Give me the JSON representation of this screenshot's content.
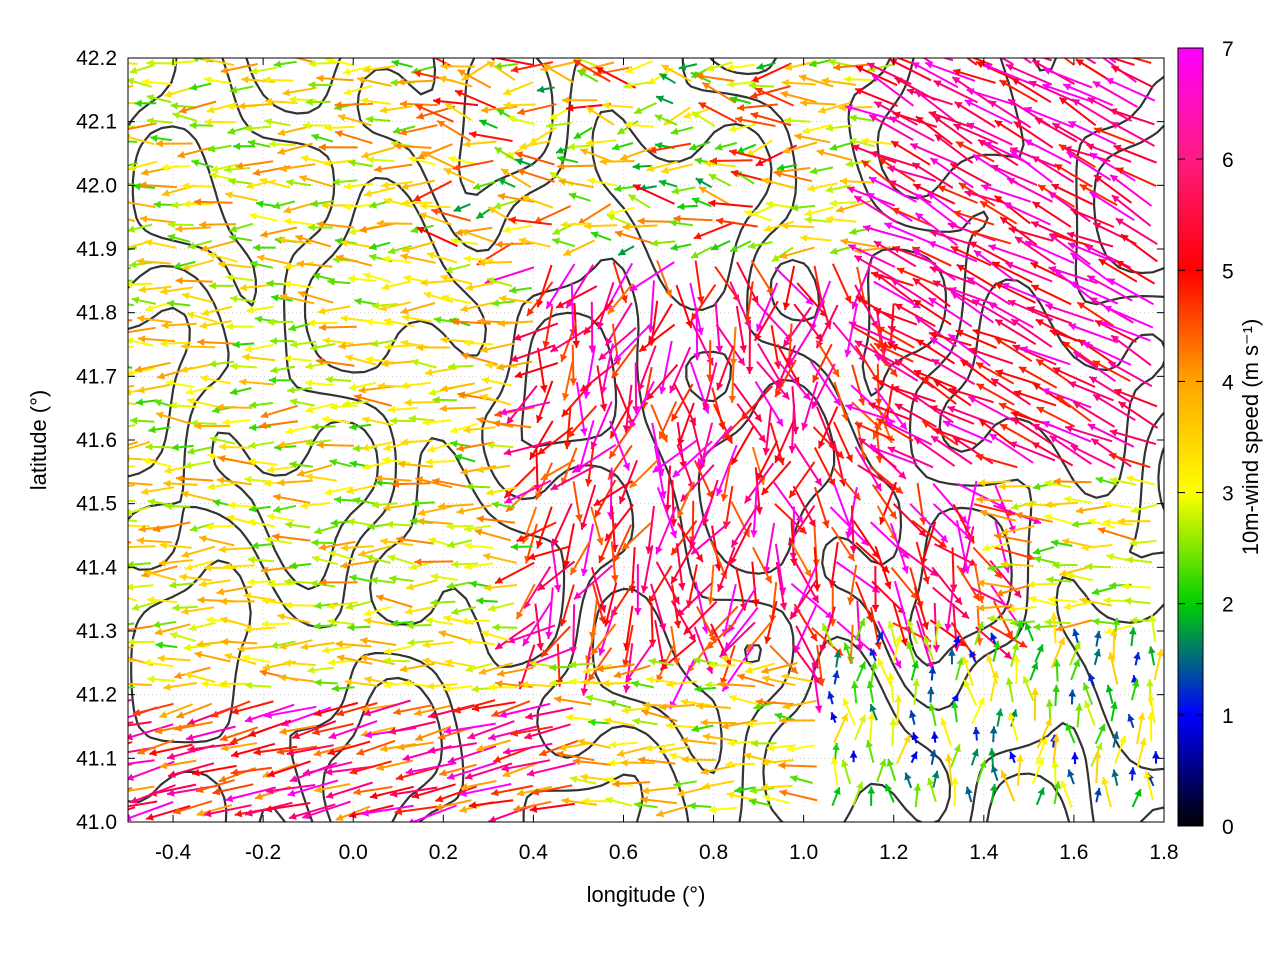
{
  "chart_data": {
    "type": "vector-field",
    "xlabel": "longitude (°)",
    "ylabel": "latitude (°)",
    "xlim": [
      -0.5,
      1.8
    ],
    "ylim": [
      41.0,
      42.2
    ],
    "x_ticks": [
      "-0.4",
      "-0.2",
      "0.0",
      "0.2",
      "0.4",
      "0.6",
      "0.8",
      "1.0",
      "1.2",
      "1.4",
      "1.6",
      "1.8"
    ],
    "y_ticks": [
      "41.0",
      "41.1",
      "41.2",
      "41.3",
      "41.4",
      "41.5",
      "41.6",
      "41.7",
      "41.8",
      "41.9",
      "42.0",
      "42.1",
      "42.2"
    ],
    "grid": true,
    "colorbar": {
      "label": "10m-wind speed (m s⁻¹)",
      "range": [
        0,
        7
      ],
      "ticks": [
        "0",
        "1",
        "2",
        "3",
        "4",
        "5",
        "6",
        "7"
      ],
      "palette": [
        "#000000",
        "#0000ff",
        "#00d000",
        "#ffff00",
        "#ffa500",
        "#ff0000",
        "#ff00ff"
      ]
    },
    "contour_color": "#333333",
    "wind_regions": [
      {
        "area": "west and north-west",
        "speed_range": [
          2,
          5
        ],
        "direction": "from east"
      },
      {
        "area": "south-west coastal strip",
        "speed_range": [
          5,
          7
        ],
        "direction": "from east"
      },
      {
        "area": "centre-east interior",
        "speed_range": [
          5,
          7
        ],
        "direction": "from north-west to south-east, converging"
      },
      {
        "area": "south-east corner",
        "speed_range": [
          0,
          4
        ],
        "direction": "from south"
      }
    ]
  }
}
